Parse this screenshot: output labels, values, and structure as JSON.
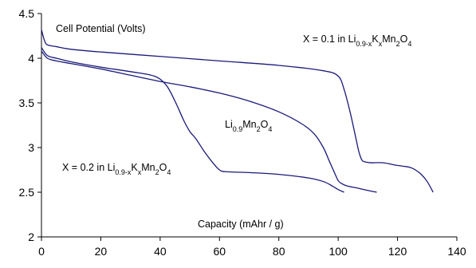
{
  "chart_data": {
    "type": "line",
    "title": "",
    "ylabel": "Cell Potential (Volts)",
    "xlabel": "Capacity (mAhr / g)",
    "xlim": [
      0,
      140
    ],
    "ylim": [
      2,
      4.5
    ],
    "x_ticks": [
      "0",
      "20",
      "40",
      "60",
      "80",
      "100",
      "120",
      "140"
    ],
    "y_ticks": [
      "2",
      "2.5",
      "3",
      "3.5",
      "4",
      "4.5"
    ],
    "grid": false,
    "line_color": "#1a1a7a",
    "series": [
      {
        "name": "Li0.9Mn2O4",
        "label_parts": [
          {
            "t": "Li",
            "sub": false
          },
          {
            "t": "0.9",
            "sub": true
          },
          {
            "t": "Mn",
            "sub": false
          },
          {
            "t": "2",
            "sub": true
          },
          {
            "t": "O",
            "sub": false
          },
          {
            "t": "4",
            "sub": true
          }
        ],
        "x": [
          0,
          2,
          5,
          10,
          20,
          30,
          40,
          50,
          60,
          70,
          80,
          88,
          92,
          95,
          97,
          99,
          100,
          101,
          103,
          106,
          110,
          113
        ],
        "y": [
          4.08,
          4.0,
          3.97,
          3.94,
          3.88,
          3.81,
          3.74,
          3.68,
          3.61,
          3.52,
          3.4,
          3.26,
          3.15,
          3.0,
          2.85,
          2.7,
          2.63,
          2.6,
          2.57,
          2.55,
          2.52,
          2.5
        ]
      },
      {
        "name": "X = 0.1 in Li0.9-xKxMn2O4",
        "label_parts": [
          {
            "t": "X = 0.1 in Li",
            "sub": false
          },
          {
            "t": "0.9-x",
            "sub": true
          },
          {
            "t": "K",
            "sub": false
          },
          {
            "t": "x",
            "sub": true
          },
          {
            "t": "Mn",
            "sub": false
          },
          {
            "t": "2",
            "sub": true
          },
          {
            "t": "O",
            "sub": false
          },
          {
            "t": "4",
            "sub": true
          }
        ],
        "x": [
          0,
          1,
          2,
          5,
          10,
          20,
          40,
          60,
          80,
          95,
          100,
          102,
          104,
          106,
          107,
          108,
          109,
          111,
          115,
          120,
          124,
          126,
          128,
          130,
          132
        ],
        "y": [
          4.32,
          4.2,
          4.15,
          4.13,
          4.1,
          4.07,
          4.02,
          3.97,
          3.92,
          3.86,
          3.8,
          3.65,
          3.4,
          3.1,
          2.95,
          2.86,
          2.84,
          2.83,
          2.83,
          2.8,
          2.78,
          2.75,
          2.7,
          2.62,
          2.5
        ]
      },
      {
        "name": "X = 0.2 in Li0.9-xKxMn2O4",
        "label_parts": [
          {
            "t": "X = 0.2 in Li",
            "sub": false
          },
          {
            "t": "0.9-x",
            "sub": true
          },
          {
            "t": "K",
            "sub": false
          },
          {
            "t": "x",
            "sub": true
          },
          {
            "t": "Mn",
            "sub": false
          },
          {
            "t": "2",
            "sub": true
          },
          {
            "t": "O",
            "sub": false
          },
          {
            "t": "4",
            "sub": true
          }
        ],
        "x": [
          0,
          2,
          5,
          10,
          20,
          30,
          38,
          42,
          45,
          48,
          50,
          52,
          55,
          58,
          60,
          62,
          70,
          80,
          90,
          95,
          98,
          100,
          102
        ],
        "y": [
          4.12,
          4.03,
          4.0,
          3.96,
          3.9,
          3.85,
          3.8,
          3.7,
          3.52,
          3.3,
          3.18,
          3.1,
          2.95,
          2.82,
          2.75,
          2.73,
          2.72,
          2.7,
          2.66,
          2.62,
          2.57,
          2.53,
          2.5
        ]
      }
    ]
  }
}
